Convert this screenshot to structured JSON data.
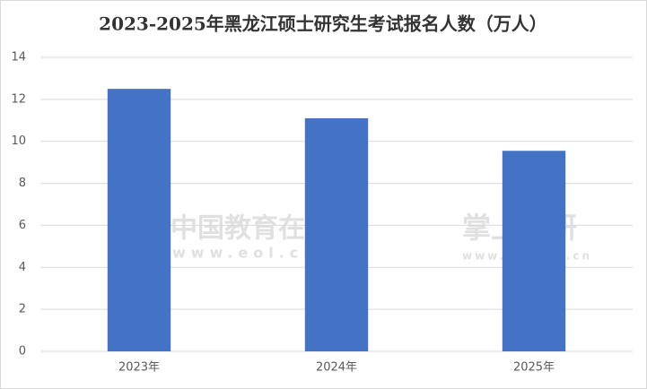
{
  "chart_data": {
    "type": "bar",
    "title": "2023-2025年黑龙江硕士研究生考试报名人数（万人）",
    "categories": [
      "2023年",
      "2024年",
      "2025年"
    ],
    "values": [
      12.5,
      11.1,
      9.55
    ],
    "color": "#4472c4",
    "ylim": [
      0,
      14
    ],
    "yticks": [
      0,
      2,
      4,
      6,
      8,
      10,
      12,
      14
    ],
    "grid": true,
    "watermarks": [
      "中国教育在线",
      "www.eol.cn",
      "掌上考研",
      "www.kaoyan.cn"
    ]
  }
}
